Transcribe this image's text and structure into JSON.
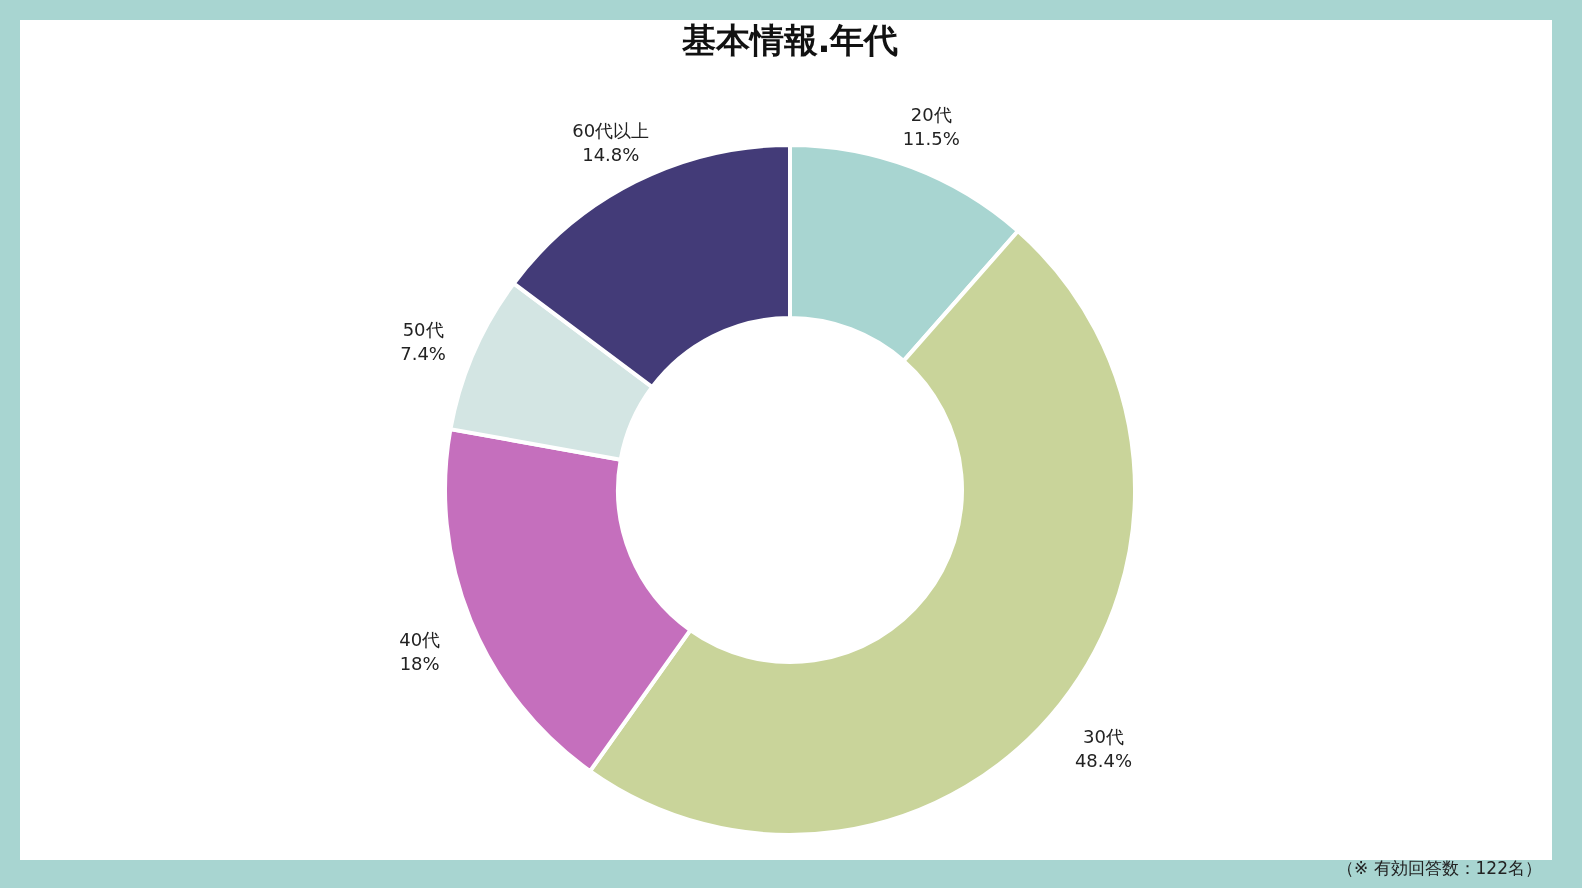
{
  "chart_data": {
    "type": "donut",
    "title": "基本情報.年代",
    "categories": [
      "20代",
      "30代",
      "40代",
      "50代",
      "60代以上"
    ],
    "values": [
      11.5,
      48.4,
      18,
      7.4,
      14.8
    ],
    "value_labels": [
      "11.5%",
      "48.4%",
      "18%",
      "7.4%",
      "14.8%"
    ],
    "colors": [
      "#a8d5d1",
      "#c9d49a",
      "#c56fbd",
      "#d3e5e3",
      "#433b78"
    ],
    "annotations": [
      "（※ 有効回答数：122名）"
    ]
  }
}
